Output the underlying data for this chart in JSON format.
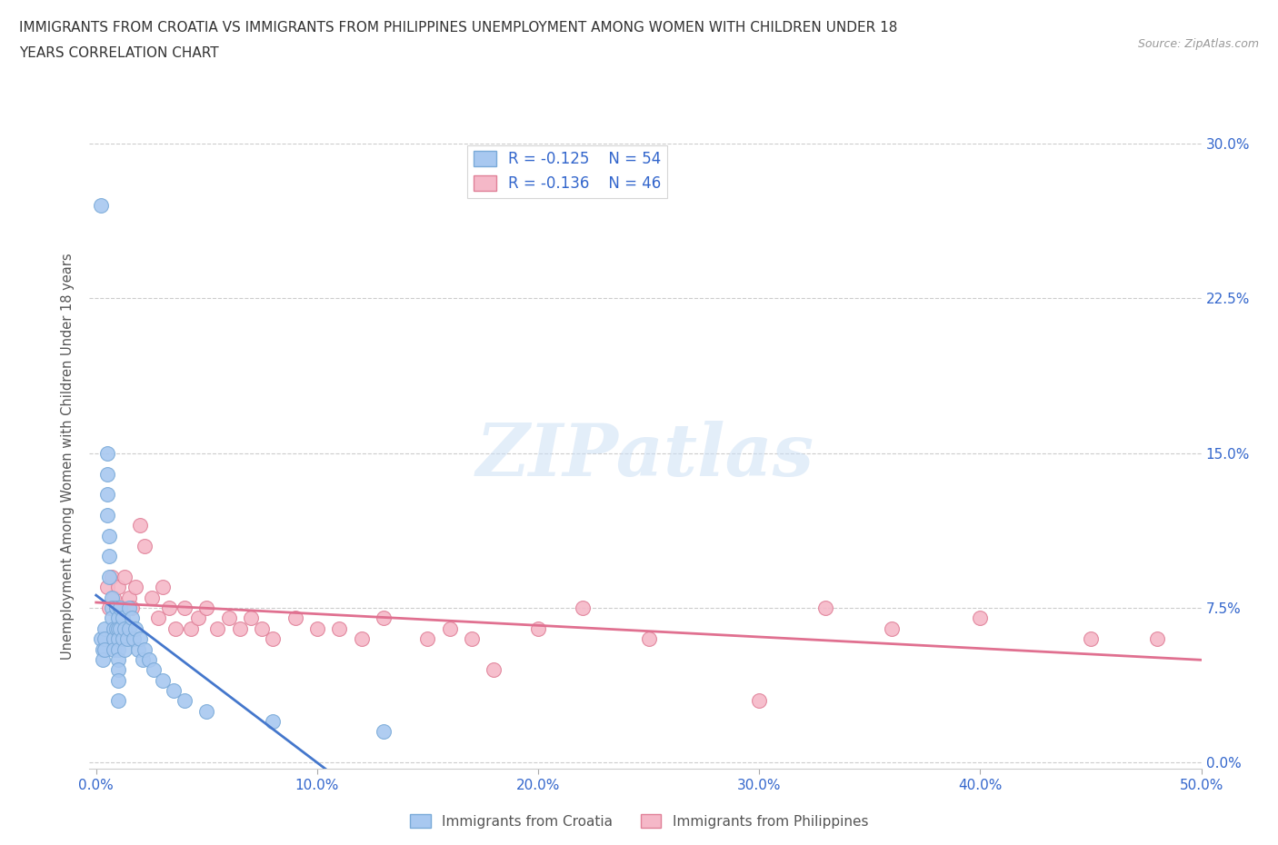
{
  "title_line1": "IMMIGRANTS FROM CROATIA VS IMMIGRANTS FROM PHILIPPINES UNEMPLOYMENT AMONG WOMEN WITH CHILDREN UNDER 18",
  "title_line2": "YEARS CORRELATION CHART",
  "source": "Source: ZipAtlas.com",
  "ylabel": "Unemployment Among Women with Children Under 18 years",
  "xlim": [
    0.0,
    0.5
  ],
  "ylim": [
    0.0,
    0.3
  ],
  "xticks": [
    0.0,
    0.1,
    0.2,
    0.3,
    0.4,
    0.5
  ],
  "yticks": [
    0.0,
    0.075,
    0.15,
    0.225,
    0.3
  ],
  "ytick_labels": [
    "0.0%",
    "7.5%",
    "15.0%",
    "22.5%",
    "30.0%"
  ],
  "xtick_labels": [
    "0.0%",
    "10.0%",
    "20.0%",
    "30.0%",
    "40.0%",
    "50.0%"
  ],
  "croatia_color": "#a8c8f0",
  "croatia_edge_color": "#7aaad8",
  "philippines_color": "#f5b8c8",
  "philippines_edge_color": "#e08098",
  "croatia_trend_color": "#4477cc",
  "croatia_trend_dash_color": "#99bbdd",
  "philippines_trend_color": "#e07090",
  "croatia_R": -0.125,
  "croatia_N": 54,
  "philippines_R": -0.136,
  "philippines_N": 46,
  "legend_label_croatia": "Immigrants from Croatia",
  "legend_label_philippines": "Immigrants from Philippines",
  "watermark": "ZIPatlas",
  "croatia_x": [
    0.002,
    0.002,
    0.003,
    0.003,
    0.004,
    0.004,
    0.004,
    0.005,
    0.005,
    0.005,
    0.005,
    0.006,
    0.006,
    0.006,
    0.007,
    0.007,
    0.007,
    0.008,
    0.008,
    0.008,
    0.009,
    0.009,
    0.01,
    0.01,
    0.01,
    0.01,
    0.01,
    0.01,
    0.01,
    0.01,
    0.011,
    0.011,
    0.012,
    0.012,
    0.013,
    0.013,
    0.014,
    0.015,
    0.015,
    0.016,
    0.017,
    0.018,
    0.019,
    0.02,
    0.021,
    0.022,
    0.024,
    0.026,
    0.03,
    0.035,
    0.04,
    0.05,
    0.08,
    0.13
  ],
  "croatia_y": [
    0.27,
    0.06,
    0.055,
    0.05,
    0.065,
    0.06,
    0.055,
    0.15,
    0.14,
    0.13,
    0.12,
    0.11,
    0.1,
    0.09,
    0.08,
    0.075,
    0.07,
    0.065,
    0.06,
    0.055,
    0.075,
    0.065,
    0.07,
    0.065,
    0.06,
    0.055,
    0.05,
    0.045,
    0.04,
    0.03,
    0.075,
    0.065,
    0.07,
    0.06,
    0.065,
    0.055,
    0.06,
    0.075,
    0.065,
    0.07,
    0.06,
    0.065,
    0.055,
    0.06,
    0.05,
    0.055,
    0.05,
    0.045,
    0.04,
    0.035,
    0.03,
    0.025,
    0.02,
    0.015
  ],
  "philippines_x": [
    0.005,
    0.006,
    0.007,
    0.008,
    0.009,
    0.01,
    0.012,
    0.013,
    0.015,
    0.016,
    0.018,
    0.02,
    0.022,
    0.025,
    0.028,
    0.03,
    0.033,
    0.036,
    0.04,
    0.043,
    0.046,
    0.05,
    0.055,
    0.06,
    0.065,
    0.07,
    0.075,
    0.08,
    0.09,
    0.1,
    0.11,
    0.12,
    0.13,
    0.15,
    0.16,
    0.17,
    0.18,
    0.2,
    0.22,
    0.25,
    0.3,
    0.33,
    0.36,
    0.4,
    0.45,
    0.48
  ],
  "philippines_y": [
    0.085,
    0.075,
    0.09,
    0.08,
    0.075,
    0.085,
    0.075,
    0.09,
    0.08,
    0.075,
    0.085,
    0.115,
    0.105,
    0.08,
    0.07,
    0.085,
    0.075,
    0.065,
    0.075,
    0.065,
    0.07,
    0.075,
    0.065,
    0.07,
    0.065,
    0.07,
    0.065,
    0.06,
    0.07,
    0.065,
    0.065,
    0.06,
    0.07,
    0.06,
    0.065,
    0.06,
    0.045,
    0.065,
    0.075,
    0.06,
    0.03,
    0.075,
    0.065,
    0.07,
    0.06,
    0.06
  ]
}
